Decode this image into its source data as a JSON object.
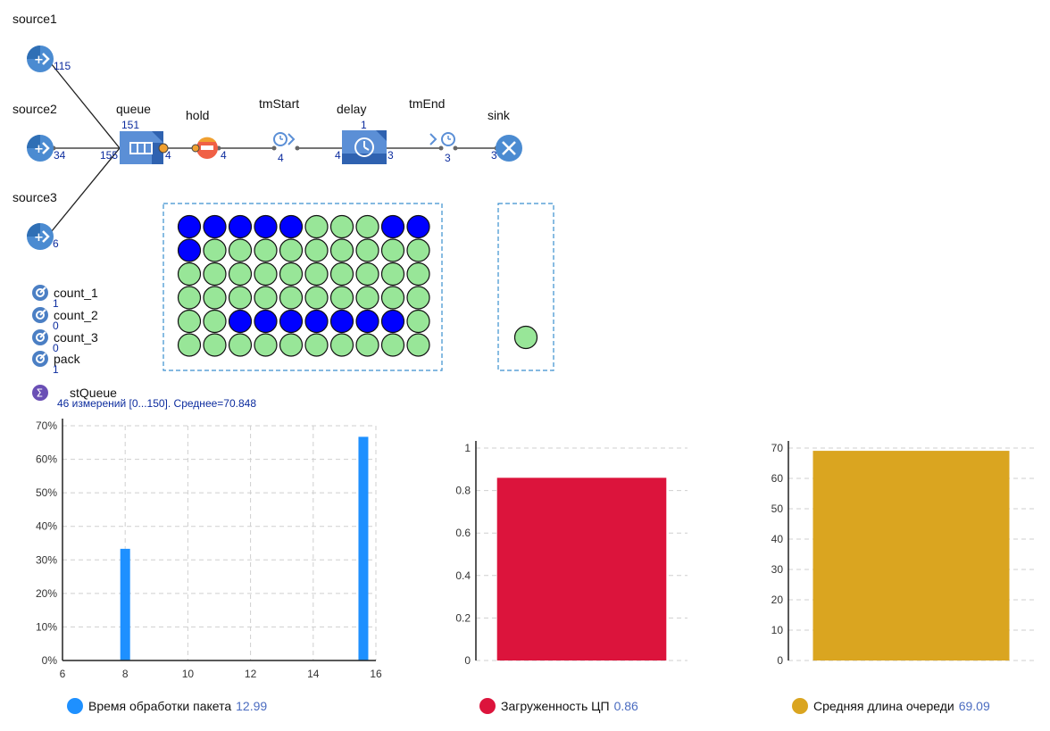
{
  "blocks": {
    "source1": {
      "label": "source1",
      "count": "115"
    },
    "source2": {
      "label": "source2",
      "count": "34"
    },
    "source3": {
      "label": "source3",
      "count": "6"
    },
    "queue": {
      "label": "queue",
      "count_top": "151",
      "count_in": "155",
      "count_out": "4"
    },
    "hold": {
      "label": "hold",
      "count_out": "4"
    },
    "tmStart": {
      "label": "tmStart",
      "count": "4"
    },
    "delay": {
      "label": "delay",
      "count_top": "1",
      "count_in": "4",
      "count_out": "3"
    },
    "tmEnd": {
      "label": "tmEnd",
      "count": "3"
    },
    "sink": {
      "label": "sink",
      "count": "3"
    }
  },
  "counters": [
    {
      "name": "count_1",
      "value": "1"
    },
    {
      "name": "count_2",
      "value": "0"
    },
    {
      "name": "count_3",
      "value": "0"
    },
    {
      "name": "pack",
      "value": "1"
    }
  ],
  "stat": {
    "name": "stQueue",
    "summary": "46 измерений [0...150]. Среднее=70.848"
  },
  "grid_area": {
    "rows": [
      [
        "blue",
        "blue",
        "blue",
        "blue",
        "blue",
        "green",
        "green",
        "green",
        "blue",
        "blue"
      ],
      [
        "blue",
        "green",
        "green",
        "green",
        "green",
        "green",
        "green",
        "green",
        "green",
        "green"
      ],
      [
        "green",
        "green",
        "green",
        "green",
        "green",
        "green",
        "green",
        "green",
        "green",
        "green"
      ],
      [
        "green",
        "green",
        "green",
        "green",
        "green",
        "green",
        "green",
        "green",
        "green",
        "green"
      ],
      [
        "green",
        "green",
        "blue",
        "blue",
        "blue",
        "blue",
        "blue",
        "blue",
        "blue",
        "green"
      ],
      [
        "green",
        "green",
        "green",
        "green",
        "green",
        "green",
        "green",
        "green",
        "green",
        "green"
      ]
    ],
    "colors": {
      "blue": "#0000ff",
      "green": "#98e698"
    }
  },
  "small_area": {
    "items": [
      "green"
    ]
  },
  "charts": {
    "hist": {
      "legend": {
        "name": "Время обработки пакета",
        "value": "12.99"
      },
      "color": "#1e90ff"
    },
    "cpu": {
      "legend": {
        "name": "Загруженность ЦП",
        "value": "0.86"
      },
      "color": "#dc143c"
    },
    "queue_len": {
      "legend": {
        "name": "Средняя длина очереди",
        "value": "69.09"
      },
      "color": "#daa520"
    }
  },
  "chart_data": [
    {
      "type": "bar",
      "x": [
        8,
        15.6
      ],
      "values": [
        33.3,
        66.7
      ],
      "xlim": [
        6,
        16
      ],
      "xticks": [
        "6",
        "8",
        "10",
        "12",
        "14",
        "16"
      ],
      "ylim": [
        0,
        70
      ],
      "yticks": [
        "0%",
        "10%",
        "20%",
        "30%",
        "40%",
        "50%",
        "60%",
        "70%"
      ],
      "grid": true,
      "series": [
        {
          "name": "Время обработки пакета",
          "values": [
            33.3,
            66.7
          ]
        }
      ]
    },
    {
      "type": "bar",
      "categories": [
        ""
      ],
      "values": [
        0.86
      ],
      "ylim": [
        0,
        1
      ],
      "yticks": [
        "0",
        "0.2",
        "0.4",
        "0.6",
        "0.8",
        "1"
      ],
      "grid": true,
      "series": [
        {
          "name": "Загруженность ЦП",
          "values": [
            0.86
          ]
        }
      ]
    },
    {
      "type": "bar",
      "categories": [
        ""
      ],
      "values": [
        69.09
      ],
      "ylim": [
        0,
        70
      ],
      "yticks": [
        "0",
        "10",
        "20",
        "30",
        "40",
        "50",
        "60",
        "70"
      ],
      "grid": true,
      "series": [
        {
          "name": "Средняя длина очереди",
          "values": [
            69.09
          ]
        }
      ]
    }
  ]
}
